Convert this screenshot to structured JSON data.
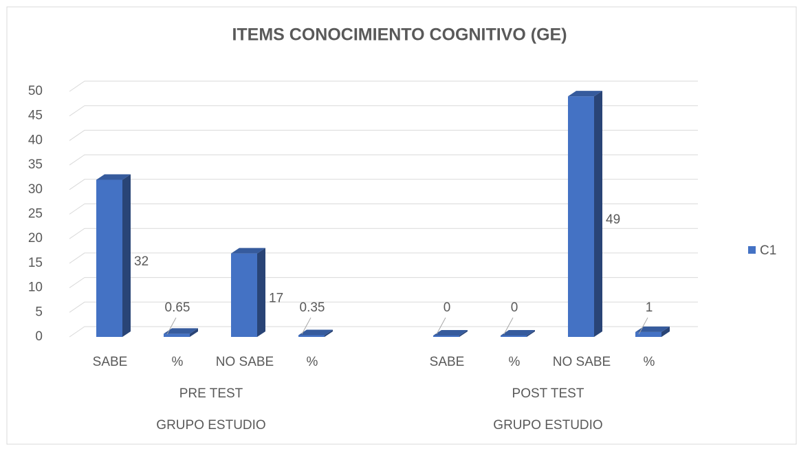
{
  "chart_data": {
    "type": "bar3d",
    "title": "ITEMS CONOCIMIENTO COGNITIVO (GE)",
    "categories": [
      "SABE",
      "%",
      "NO SABE",
      "%",
      "SABE",
      "%",
      "NO SABE",
      "%"
    ],
    "category_groups": [
      "PRE TEST",
      "POST TEST"
    ],
    "category_supergroups": [
      "GRUPO ESTUDIO",
      "GRUPO ESTUDIO"
    ],
    "series": [
      {
        "name": "C1",
        "color": "#4472c4",
        "values": [
          32,
          0.65,
          17,
          0.35,
          0,
          0,
          49,
          1
        ]
      }
    ],
    "ylim": [
      0,
      50
    ],
    "yticks": [
      0,
      5,
      10,
      15,
      20,
      25,
      30,
      35,
      40,
      45,
      50
    ],
    "grid": true,
    "legend": "right"
  }
}
